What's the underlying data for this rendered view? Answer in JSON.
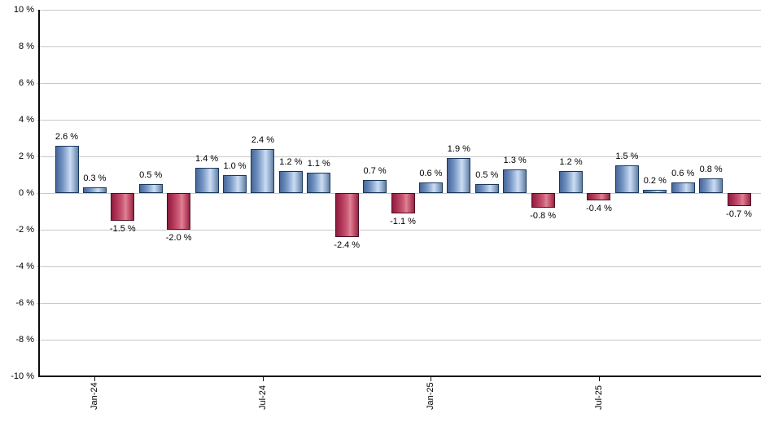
{
  "chart_data": {
    "type": "bar",
    "title": "",
    "xlabel": "",
    "ylabel": "",
    "ylim": [
      -10,
      10
    ],
    "y_tick_step": 2,
    "grid": true,
    "legend": "none",
    "values": [
      2.6,
      0.3,
      -1.5,
      0.5,
      -2.0,
      1.4,
      1.0,
      2.4,
      1.2,
      1.1,
      -2.4,
      0.7,
      -1.1,
      0.6,
      1.9,
      0.5,
      1.3,
      -0.8,
      1.2,
      -0.4,
      1.5,
      0.2,
      0.6,
      0.8,
      -0.7
    ],
    "bar_labels": [
      "2.6 %",
      "0.3 %",
      "-1.5 %",
      "0.5 %",
      "-2.0 %",
      "1.4 %",
      "1.0 %",
      "2.4 %",
      "1.2 %",
      "1.1 %",
      "-2.4 %",
      "0.7 %",
      "-1.1 %",
      "0.6 %",
      "1.9 %",
      "0.5 %",
      "1.3 %",
      "-0.8 %",
      "1.2 %",
      "-0.4 %",
      "1.5 %",
      "0.2 %",
      "0.6 %",
      "0.8 %",
      "-0.7 %"
    ],
    "y_ticks": [
      "10 %",
      "8 %",
      "6 %",
      "4 %",
      "2 %",
      "0 %",
      "-2 %",
      "-4 %",
      "-6 %",
      "-8 %",
      "-10 %"
    ],
    "y_tick_values": [
      10,
      8,
      6,
      4,
      2,
      0,
      -2,
      -4,
      -6,
      -8,
      -10
    ],
    "x_ticks": [
      {
        "label": "Jan-24",
        "index": 1
      },
      {
        "label": "Jul-24",
        "index": 7
      },
      {
        "label": "Jan-25",
        "index": 13
      },
      {
        "label": "Jul-25",
        "index": 19
      }
    ],
    "colors": {
      "positive_fill_light": "#cddcf1",
      "positive_fill_dark": "#46689a",
      "positive_edge": "#17375d",
      "negative_fill_light": "#dd8496",
      "negative_fill_dark": "#8e1c3e",
      "negative_edge": "#4f0d24",
      "gridline": "#c9c9c9",
      "axis": "#0a0a0a",
      "text": "#000000",
      "background": "#ffffff"
    }
  }
}
